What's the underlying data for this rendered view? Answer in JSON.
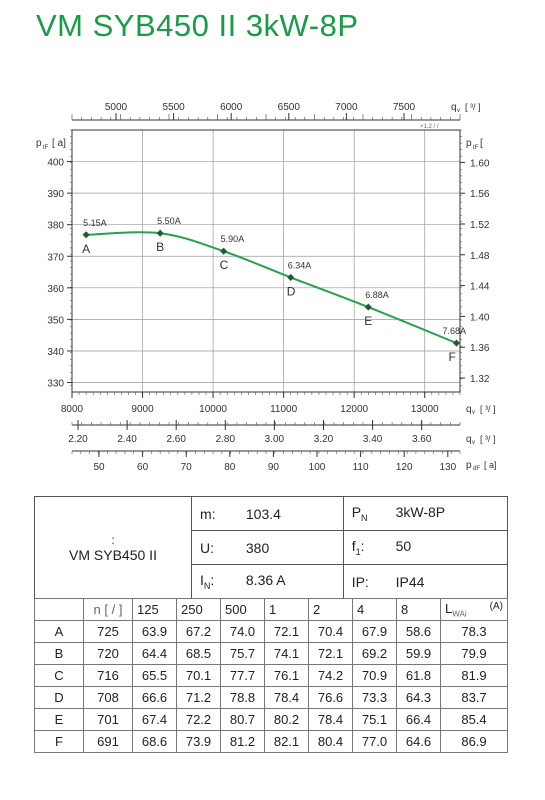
{
  "title": "VM SYB450 II 3kW-8P",
  "chart_data": {
    "type": "line",
    "left_axis_label": "p",
    "left_axis_sub": "tF",
    "left_axis_unit": "a]",
    "right_axis_label": "p",
    "right_axis_sub": "tF",
    "top_axis_label": "q",
    "top_axis_sub": "v",
    "top_axis_unit": "³/",
    "top_axis_note": "×1.2  /   /",
    "x_axis_label": "q",
    "x_axis_sub": "v",
    "x_axis_unit": "³/",
    "bottom2_axis_label": "q",
    "bottom2_axis_sub": "v",
    "bottom2_axis_unit": "³/",
    "bottom3_axis_label": "p",
    "bottom3_axis_sub": "dF",
    "bottom3_axis_unit": "a]",
    "x_ticks": [
      8000,
      9000,
      10000,
      11000,
      12000,
      13000
    ],
    "x_range": [
      8000,
      13500
    ],
    "y_ticks": [
      330,
      340,
      350,
      360,
      370,
      380,
      390,
      400
    ],
    "y_range": [
      327,
      410
    ],
    "top_ticks": [
      "5000",
      "5500",
      "6000",
      "6500",
      "7000",
      "7500"
    ],
    "right_ticks": [
      "1.32",
      "1.36",
      "1.40",
      "1.44",
      "1.48",
      "1.52",
      "1.56",
      "1.60"
    ],
    "bottom2_ticks": [
      "2.20",
      "2.40",
      "2.60",
      "2.80",
      "3.00",
      "3.20",
      "3.40",
      "3.60"
    ],
    "bottom3_ticks": [
      "50",
      "60",
      "70",
      "80",
      "90",
      "100",
      "110",
      "120",
      "130"
    ],
    "series": [
      {
        "color": "#23a34a",
        "points": [
          {
            "x": 8200,
            "y": 376.8,
            "current": "5.15A",
            "label": "A"
          },
          {
            "x": 9250,
            "y": 377.3,
            "current": "5.50A",
            "label": "B"
          },
          {
            "x": 10150,
            "y": 371.6,
            "current": "5.90A",
            "label": "C"
          },
          {
            "x": 11100,
            "y": 363.3,
            "current": "6.34A",
            "label": "D"
          },
          {
            "x": 12200,
            "y": 353.9,
            "current": "6.88A",
            "label": "E"
          },
          {
            "x": 13450,
            "y": 342.5,
            "current": "7.68A",
            "label": "F"
          }
        ]
      }
    ]
  },
  "spec": {
    "symbol": ":",
    "model": "VM SYB450 II",
    "m_label": "m:",
    "m_value": "103.4",
    "pn_label": "P",
    "pn_sub": "N",
    "pn_value": "3kW-8P",
    "u_label": "U:",
    "u_value": "380",
    "f_label": "f",
    "f_sub": "1",
    "f_value": "50",
    "in_label": "I",
    "in_sub": "N",
    "in_value": "8.36  A",
    "ip_label": "IP:",
    "ip_value": "IP44"
  },
  "table": {
    "n_header": "n [  /  ]",
    "freq_headers": [
      "125",
      "250",
      "500",
      "1",
      "2",
      "4",
      "8"
    ],
    "lw_header": "L",
    "lw_sub": "WAi",
    "lw_unit": "(A)",
    "rows": [
      {
        "id": "A",
        "n": "725",
        "v": [
          "63.9",
          "67.2",
          "74.0",
          "72.1",
          "70.4",
          "67.9",
          "58.6"
        ],
        "lw": "78.3"
      },
      {
        "id": "B",
        "n": "720",
        "v": [
          "64.4",
          "68.5",
          "75.7",
          "74.1",
          "72.1",
          "69.2",
          "59.9"
        ],
        "lw": "79.9"
      },
      {
        "id": "C",
        "n": "716",
        "v": [
          "65.5",
          "70.1",
          "77.7",
          "76.1",
          "74.2",
          "70.9",
          "61.8"
        ],
        "lw": "81.9"
      },
      {
        "id": "D",
        "n": "708",
        "v": [
          "66.6",
          "71.2",
          "78.8",
          "78.4",
          "76.6",
          "73.3",
          "64.3"
        ],
        "lw": "83.7"
      },
      {
        "id": "E",
        "n": "701",
        "v": [
          "67.4",
          "72.2",
          "80.7",
          "80.2",
          "78.4",
          "75.1",
          "66.4"
        ],
        "lw": "85.4"
      },
      {
        "id": "F",
        "n": "691",
        "v": [
          "68.6",
          "73.9",
          "81.2",
          "82.1",
          "80.4",
          "77.0",
          "64.6"
        ],
        "lw": "86.9"
      }
    ]
  }
}
